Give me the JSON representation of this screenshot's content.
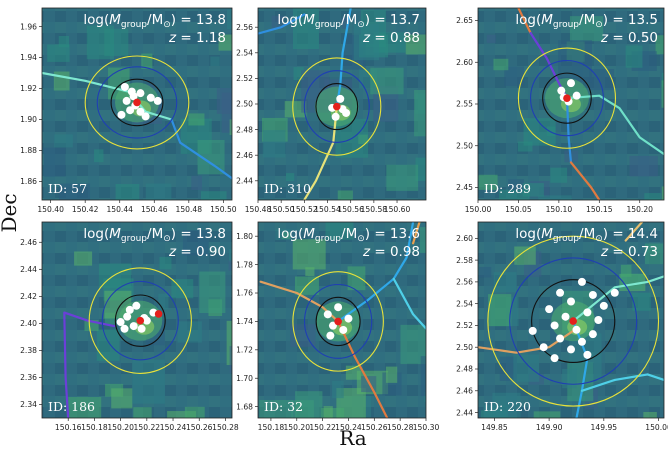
{
  "figure": {
    "xlabel": "Ra",
    "ylabel": "Dec"
  },
  "chart_data": [
    {
      "type": "scatter",
      "id_label": "ID: 57",
      "title_lines": [
        "log(M_group/M_⊙) = 13.8",
        "z = 1.18"
      ],
      "log_mass": "13.8",
      "z": "1.18",
      "xlim": [
        150.395,
        150.505
      ],
      "ylim": [
        1.848,
        1.972
      ],
      "xticks": [
        "150.40",
        "150.42",
        "150.44",
        "150.46",
        "150.48",
        "150.50"
      ],
      "yticks": [
        "1.86",
        "1.88",
        "1.90",
        "1.92",
        "1.94",
        "1.96"
      ],
      "center": [
        150.45,
        1.911
      ],
      "circles": [
        {
          "r": 0.03,
          "color": "#e8e23a"
        },
        {
          "r": 0.023,
          "color": "#1f3fb3"
        },
        {
          "r": 0.015,
          "color": "#111111"
        }
      ],
      "members": [
        [
          150.443,
          1.921
        ],
        [
          150.447,
          1.918
        ],
        [
          150.452,
          1.917
        ],
        [
          150.458,
          1.914
        ],
        [
          150.444,
          1.912
        ],
        [
          150.449,
          1.909
        ],
        [
          150.446,
          1.906
        ],
        [
          150.452,
          1.905
        ],
        [
          150.441,
          1.903
        ],
        [
          150.455,
          1.902
        ],
        [
          150.462,
          1.912
        ],
        [
          150.448,
          1.915
        ]
      ],
      "filaments": [
        {
          "color": "#7ee8d0",
          "points": [
            [
              150.395,
              1.93
            ],
            [
              150.42,
              1.925
            ],
            [
              150.445,
              1.918
            ],
            [
              150.455,
              1.905
            ],
            [
              150.47,
              1.9
            ]
          ]
        },
        {
          "color": "#2f8fe0",
          "points": [
            [
              150.47,
              1.9
            ],
            [
              150.475,
              1.885
            ],
            [
              150.495,
              1.87
            ],
            [
              150.505,
              1.862
            ]
          ]
        }
      ]
    },
    {
      "type": "scatter",
      "id_label": "ID: 310",
      "title_lines": [
        "log(M_group/M_⊙) = 13.7",
        "z = 0.88"
      ],
      "log_mass": "13.7",
      "z": "0.88",
      "xlim": [
        150.48,
        150.625
      ],
      "ylim": [
        2.425,
        2.575
      ],
      "xticks": [
        "150.48",
        "150.50",
        "150.52",
        "150.54",
        "150.56",
        "150.58",
        "150.60"
      ],
      "yticks": [
        "2.44",
        "2.46",
        "2.48",
        "2.50",
        "2.52",
        "2.54",
        "2.56"
      ],
      "center": [
        150.548,
        2.498
      ],
      "circles": [
        {
          "r": 0.038,
          "color": "#e8e23a"
        },
        {
          "r": 0.028,
          "color": "#1f3fb3"
        },
        {
          "r": 0.018,
          "color": "#111111"
        }
      ],
      "members": [
        [
          150.551,
          2.504
        ],
        [
          150.544,
          2.497
        ],
        [
          150.553,
          2.496
        ],
        [
          150.547,
          2.49
        ],
        [
          150.556,
          2.493
        ]
      ],
      "filaments": [
        {
          "color": "#2fa8e8",
          "points": [
            [
              150.56,
              2.575
            ],
            [
              150.553,
              2.54
            ],
            [
              150.551,
              2.515
            ],
            [
              150.548,
              2.498
            ]
          ]
        },
        {
          "color": "#2f8fe0",
          "points": [
            [
              150.48,
              2.555
            ],
            [
              150.5,
              2.56
            ],
            [
              150.52,
              2.57
            ]
          ]
        },
        {
          "color": "#e7e27a",
          "points": [
            [
              150.548,
              2.498
            ],
            [
              150.545,
              2.47
            ],
            [
              150.53,
              2.44
            ],
            [
              150.52,
              2.425
            ]
          ]
        }
      ]
    },
    {
      "type": "scatter",
      "id_label": "ID: 289",
      "title_lines": [
        "log(M_group/M_⊙) = 13.5",
        "z = 0.50"
      ],
      "log_mass": "13.5",
      "z": "0.50",
      "xlim": [
        150.0,
        150.23
      ],
      "ylim": [
        2.435,
        2.665
      ],
      "xticks": [
        "150.00",
        "150.05",
        "150.10",
        "150.15",
        "150.20"
      ],
      "yticks": [
        "2.45",
        "2.50",
        "2.55",
        "2.60",
        "2.65"
      ],
      "center": [
        150.11,
        2.557
      ],
      "circles": [
        {
          "r": 0.06,
          "color": "#e8e23a"
        },
        {
          "r": 0.045,
          "color": "#1f3fb3"
        },
        {
          "r": 0.03,
          "color": "#111111"
        }
      ],
      "members": [
        [
          150.115,
          2.575
        ],
        [
          150.103,
          2.566
        ],
        [
          150.122,
          2.56
        ],
        [
          150.112,
          2.553
        ],
        [
          150.106,
          2.558
        ]
      ],
      "filaments": [
        {
          "color": "#e07a40",
          "points": [
            [
              150.05,
              2.665
            ],
            [
              150.065,
              2.635
            ]
          ]
        },
        {
          "color": "#6b3fd8",
          "points": [
            [
              150.065,
              2.635
            ],
            [
              150.085,
              2.605
            ],
            [
              150.1,
              2.575
            ],
            [
              150.11,
              2.557
            ]
          ]
        },
        {
          "color": "#6fe0c8",
          "points": [
            [
              150.11,
              2.557
            ],
            [
              150.15,
              2.56
            ],
            [
              150.175,
              2.545
            ],
            [
              150.2,
              2.51
            ],
            [
              150.23,
              2.49
            ]
          ]
        },
        {
          "color": "#2f8fe0",
          "points": [
            [
              150.11,
              2.557
            ],
            [
              150.112,
              2.51
            ],
            [
              150.115,
              2.48
            ]
          ]
        },
        {
          "color": "#e07a40",
          "points": [
            [
              150.115,
              2.48
            ],
            [
              150.14,
              2.45
            ],
            [
              150.15,
              2.435
            ]
          ]
        }
      ]
    },
    {
      "type": "scatter",
      "id_label": "ID: 186",
      "title_lines": [
        "log(M_group/M_⊙) = 13.8",
        "z = 0.90"
      ],
      "log_mass": "13.8",
      "z": "0.90",
      "xlim": [
        150.14,
        150.285
      ],
      "ylim": [
        2.33,
        2.475
      ],
      "xticks": [
        "150.16",
        "150.18",
        "150.20",
        "150.22",
        "150.24",
        "150.26",
        "150.28"
      ],
      "yticks": [
        "2.34",
        "2.36",
        "2.38",
        "2.40",
        "2.42",
        "2.44",
        "2.46"
      ],
      "center": [
        150.215,
        2.402
      ],
      "circles": [
        {
          "r": 0.039,
          "color": "#e8e23a"
        },
        {
          "r": 0.029,
          "color": "#1f3fb3"
        },
        {
          "r": 0.019,
          "color": "#111111"
        }
      ],
      "members": [
        [
          150.212,
          2.413
        ],
        [
          150.205,
          2.405
        ],
        [
          150.22,
          2.402
        ],
        [
          150.21,
          2.398
        ],
        [
          150.2,
          2.401
        ],
        [
          150.216,
          2.396
        ],
        [
          150.225,
          2.408
        ],
        [
          150.207,
          2.41
        ],
        [
          150.218,
          2.404
        ],
        [
          150.203,
          2.396
        ]
      ],
      "highlight": [
        150.229,
        2.407
      ],
      "filaments": [
        {
          "color": "#6b3fd8",
          "points": [
            [
              150.16,
              2.33
            ],
            [
              150.158,
              2.36
            ],
            [
              150.157,
              2.408
            ],
            [
              150.175,
              2.402
            ],
            [
              150.195,
              2.398
            ]
          ]
        }
      ]
    },
    {
      "type": "scatter",
      "id_label": "ID: 32",
      "title_lines": [
        "log(M_group/M_⊙) = 13.6",
        "z = 0.98"
      ],
      "log_mass": "13.6",
      "z": "0.98",
      "xlim": [
        150.17,
        150.3
      ],
      "ylim": [
        1.672,
        1.81
      ],
      "xticks": [
        "150.18",
        "150.20",
        "150.22",
        "150.24",
        "150.26",
        "150.28",
        "150.30"
      ],
      "yticks": [
        "1.68",
        "1.70",
        "1.72",
        "1.74",
        "1.76",
        "1.78",
        "1.80"
      ],
      "center": [
        150.232,
        1.74
      ],
      "circles": [
        {
          "r": 0.035,
          "color": "#e8e23a"
        },
        {
          "r": 0.026,
          "color": "#1f3fb3"
        },
        {
          "r": 0.017,
          "color": "#111111"
        }
      ],
      "members": [
        [
          150.232,
          1.75
        ],
        [
          150.224,
          1.745
        ],
        [
          150.24,
          1.742
        ],
        [
          150.228,
          1.737
        ],
        [
          150.236,
          1.734
        ],
        [
          150.226,
          1.73
        ]
      ],
      "filaments": [
        {
          "color": "#e0a060",
          "points": [
            [
              150.172,
              1.768
            ],
            [
              150.2,
              1.76
            ],
            [
              150.22,
              1.75
            ],
            [
              150.232,
              1.74
            ]
          ]
        },
        {
          "color": "#2fa8e8",
          "points": [
            [
              150.232,
              1.74
            ],
            [
              150.255,
              1.755
            ],
            [
              150.275,
              1.77
            ],
            [
              150.285,
              1.785
            ],
            [
              150.29,
              1.81
            ]
          ]
        },
        {
          "color": "#4fd0e8",
          "points": [
            [
              150.275,
              1.77
            ],
            [
              150.29,
              1.745
            ],
            [
              150.3,
              1.735
            ]
          ]
        },
        {
          "color": "#e07a40",
          "points": [
            [
              150.232,
              1.74
            ],
            [
              150.245,
              1.715
            ],
            [
              150.26,
              1.69
            ],
            [
              150.27,
              1.672
            ]
          ]
        },
        {
          "color": "#e8a050",
          "points": [
            [
              150.29,
              1.795
            ],
            [
              150.295,
              1.81
            ]
          ]
        }
      ]
    },
    {
      "type": "scatter",
      "id_label": "ID: 220",
      "title_lines": [
        "log(M_group/M_⊙) = 14.4",
        "z = 0.73"
      ],
      "log_mass": "14.4",
      "z": "0.73",
      "xlim": [
        149.835,
        150.005
      ],
      "ylim": [
        2.435,
        2.615
      ],
      "xticks": [
        "149.85",
        "149.90",
        "149.95",
        "150.00"
      ],
      "yticks": [
        "2.44",
        "2.46",
        "2.48",
        "2.50",
        "2.52",
        "2.54",
        "2.56",
        "2.58",
        "2.60"
      ],
      "center": [
        149.922,
        2.524
      ],
      "circles": [
        {
          "r": 0.078,
          "color": "#e8e23a"
        },
        {
          "r": 0.058,
          "color": "#1f3fb3"
        },
        {
          "r": 0.038,
          "color": "#111111"
        }
      ],
      "members": [
        [
          149.93,
          2.56
        ],
        [
          149.91,
          2.55
        ],
        [
          149.94,
          2.548
        ],
        [
          149.92,
          2.542
        ],
        [
          149.9,
          2.535
        ],
        [
          149.935,
          2.532
        ],
        [
          149.915,
          2.528
        ],
        [
          149.945,
          2.525
        ],
        [
          149.905,
          2.52
        ],
        [
          149.925,
          2.516
        ],
        [
          149.94,
          2.512
        ],
        [
          149.91,
          2.508
        ],
        [
          149.93,
          2.505
        ],
        [
          149.895,
          2.5
        ],
        [
          149.92,
          2.498
        ],
        [
          149.935,
          2.493
        ],
        [
          149.905,
          2.49
        ],
        [
          149.95,
          2.538
        ],
        [
          149.885,
          2.515
        ],
        [
          149.96,
          2.55
        ]
      ],
      "filaments": [
        {
          "color": "#e0a060",
          "points": [
            [
              149.835,
              2.5
            ],
            [
              149.87,
              2.495
            ],
            [
              149.9,
              2.5
            ],
            [
              149.922,
              2.515
            ]
          ]
        },
        {
          "color": "#7ee8d0",
          "points": [
            [
              149.922,
              2.524
            ],
            [
              149.96,
              2.555
            ],
            [
              149.99,
              2.56
            ],
            [
              150.005,
              2.565
            ]
          ]
        },
        {
          "color": "#2fa8e8",
          "points": [
            [
              149.922,
              2.524
            ],
            [
              149.935,
              2.49
            ],
            [
              149.93,
              2.46
            ],
            [
              149.925,
              2.435
            ]
          ]
        },
        {
          "color": "#4fd0e8",
          "points": [
            [
              149.93,
              2.46
            ],
            [
              149.96,
              2.47
            ],
            [
              149.99,
              2.475
            ],
            [
              150.005,
              2.47
            ]
          ]
        },
        {
          "color": "#e8c070",
          "points": [
            [
              149.97,
              2.598
            ],
            [
              149.985,
              2.615
            ]
          ]
        }
      ]
    }
  ]
}
